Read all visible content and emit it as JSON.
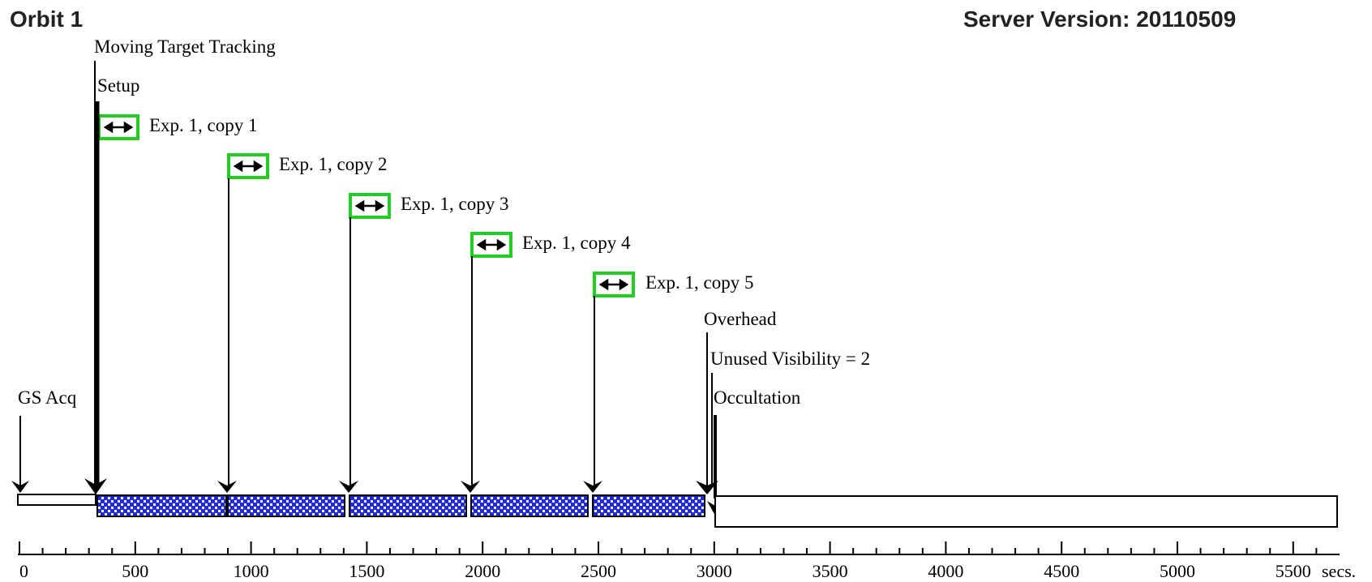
{
  "header": {
    "title": "Orbit 1",
    "server_version": "Server Version: 20110509"
  },
  "events": {
    "moving_target_tracking": "Moving Target Tracking",
    "setup": "Setup",
    "exposures": [
      "Exp. 1, copy 1",
      "Exp. 1, copy 2",
      "Exp. 1, copy 3",
      "Exp. 1, copy 4",
      "Exp. 1, copy 5"
    ],
    "overhead": "Overhead",
    "unused_visibility": "Unused Visibility = 2",
    "occultation": "Occultation",
    "gs_acq": "GS Acq"
  },
  "colors": {
    "exposure_fill": "#1f2bd6",
    "exposure_icon_border": "#22cc22"
  },
  "axis": {
    "unit": "secs.",
    "tick_labels": [
      "0",
      "500",
      "1000",
      "1500",
      "2000",
      "2500",
      "3000",
      "3500",
      "4000",
      "4500",
      "5000",
      "5500"
    ]
  }
}
